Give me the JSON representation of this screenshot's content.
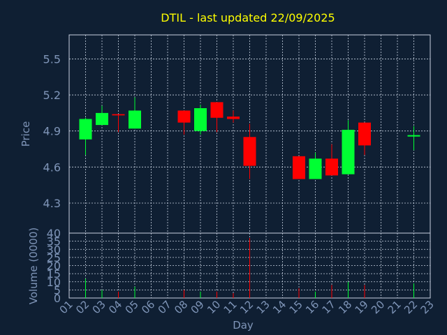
{
  "colors": {
    "background": "#0f1f33",
    "title": "#ffff00",
    "axis_text": "#7f95b8",
    "grid": "#c8d2e2",
    "frame": "#c8d2e2",
    "up": "#00ff33",
    "down": "#ff0000"
  },
  "chart_data": {
    "type": "candlestick",
    "title": "DTIL - last updated 22/09/2025",
    "grid": true,
    "price_panel": {
      "ylabel": "Price",
      "ylim": [
        4.05,
        5.7
      ],
      "yticks": [
        4.3,
        4.6,
        4.9,
        5.2,
        5.5
      ],
      "ytick_labels": [
        "4.3",
        "4.6",
        "4.9",
        "5.2",
        "5.5"
      ]
    },
    "volume_panel": {
      "ylabel": "Volume (0000)",
      "ylim": [
        0,
        40
      ],
      "yticks": [
        0,
        5,
        10,
        15,
        20,
        25,
        30,
        35,
        40
      ],
      "ytick_labels": [
        "0",
        "5",
        "10",
        "15",
        "20",
        "25",
        "30",
        "35",
        "40"
      ]
    },
    "xlabel": "Day",
    "x_range": [
      1,
      23
    ],
    "xtick_labels": [
      "01",
      "02",
      "03",
      "04",
      "05",
      "06",
      "07",
      "08",
      "09",
      "10",
      "11",
      "12",
      "13",
      "14",
      "15",
      "16",
      "17",
      "18",
      "19",
      "20",
      "21",
      "22",
      "23"
    ],
    "candles": [
      {
        "day": 2,
        "open": 4.83,
        "high": 5.01,
        "low": 4.7,
        "close": 5.0,
        "volume": 12
      },
      {
        "day": 3,
        "open": 4.95,
        "high": 5.11,
        "low": 4.95,
        "close": 5.05,
        "volume": 5
      },
      {
        "day": 4,
        "open": 5.04,
        "high": 5.04,
        "low": 4.89,
        "close": 5.03,
        "volume": 4
      },
      {
        "day": 5,
        "open": 4.92,
        "high": 5.18,
        "low": 4.92,
        "close": 5.07,
        "volume": 7
      },
      {
        "day": 8,
        "open": 5.07,
        "high": 5.07,
        "low": 4.87,
        "close": 4.97,
        "volume": 5
      },
      {
        "day": 9,
        "open": 4.9,
        "high": 5.12,
        "low": 4.87,
        "close": 5.09,
        "volume": 4
      },
      {
        "day": 10,
        "open": 5.14,
        "high": 5.14,
        "low": 4.89,
        "close": 5.01,
        "volume": 4
      },
      {
        "day": 11,
        "open": 5.02,
        "high": 5.07,
        "low": 4.97,
        "close": 5.0,
        "volume": 3
      },
      {
        "day": 12,
        "open": 4.85,
        "high": 4.96,
        "low": 4.5,
        "close": 4.61,
        "volume": 37
      },
      {
        "day": 15,
        "open": 4.69,
        "high": 4.69,
        "low": 4.5,
        "close": 4.5,
        "volume": 6
      },
      {
        "day": 16,
        "open": 4.5,
        "high": 4.72,
        "low": 4.5,
        "close": 4.67,
        "volume": 4
      },
      {
        "day": 17,
        "open": 4.67,
        "high": 4.79,
        "low": 4.53,
        "close": 4.53,
        "volume": 8
      },
      {
        "day": 18,
        "open": 4.54,
        "high": 4.99,
        "low": 4.54,
        "close": 4.91,
        "volume": 10
      },
      {
        "day": 19,
        "open": 4.97,
        "high": 4.97,
        "low": 4.7,
        "close": 4.78,
        "volume": 8
      },
      {
        "day": 22,
        "open": 4.86,
        "high": 4.94,
        "low": 4.74,
        "close": 4.86,
        "volume": 9
      }
    ]
  }
}
